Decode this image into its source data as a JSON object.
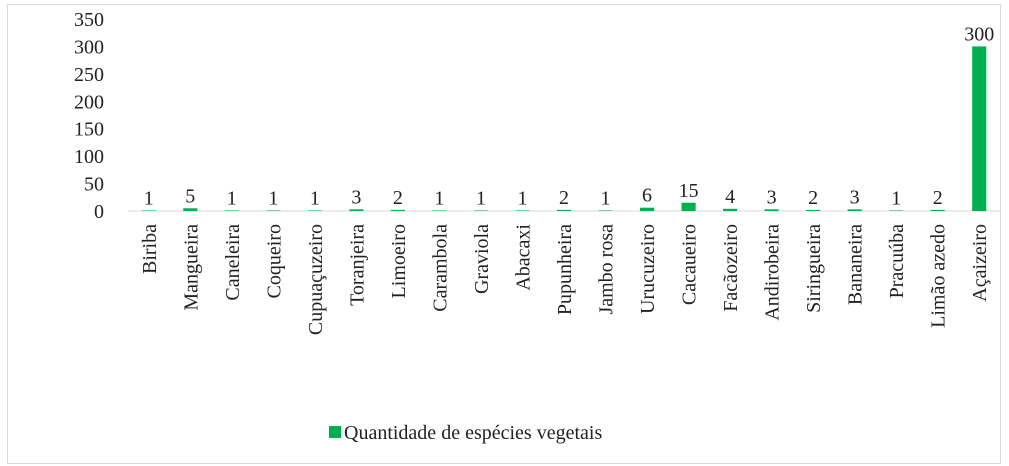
{
  "chart_data": {
    "type": "bar",
    "categories": [
      "Biriba",
      "Mangueira",
      "Caneleira",
      "Coqueiro",
      "Cupuaçuzeiro",
      "Toranjeira",
      "Limoeiro",
      "Carambola",
      "Graviola",
      "Abacaxi",
      "Pupunheira",
      "Jambo rosa",
      "Urucuzeiro",
      "Cacaueiro",
      "Facãozeiro",
      "Andirobeira",
      "Siringueira",
      "Bananeira",
      "Pracuúba",
      "Limão azedo",
      "Açaizeiro"
    ],
    "series": [
      {
        "name": "Quantidade de espécies vegetais",
        "color": "#00b050",
        "values": [
          1,
          5,
          1,
          1,
          1,
          3,
          2,
          1,
          1,
          1,
          2,
          1,
          6,
          15,
          4,
          3,
          2,
          3,
          1,
          2,
          300
        ]
      }
    ],
    "ylim": [
      0,
      350
    ],
    "yticks": [
      0,
      50,
      100,
      150,
      200,
      250,
      300,
      350
    ],
    "grid": false,
    "legend": "bottom"
  }
}
